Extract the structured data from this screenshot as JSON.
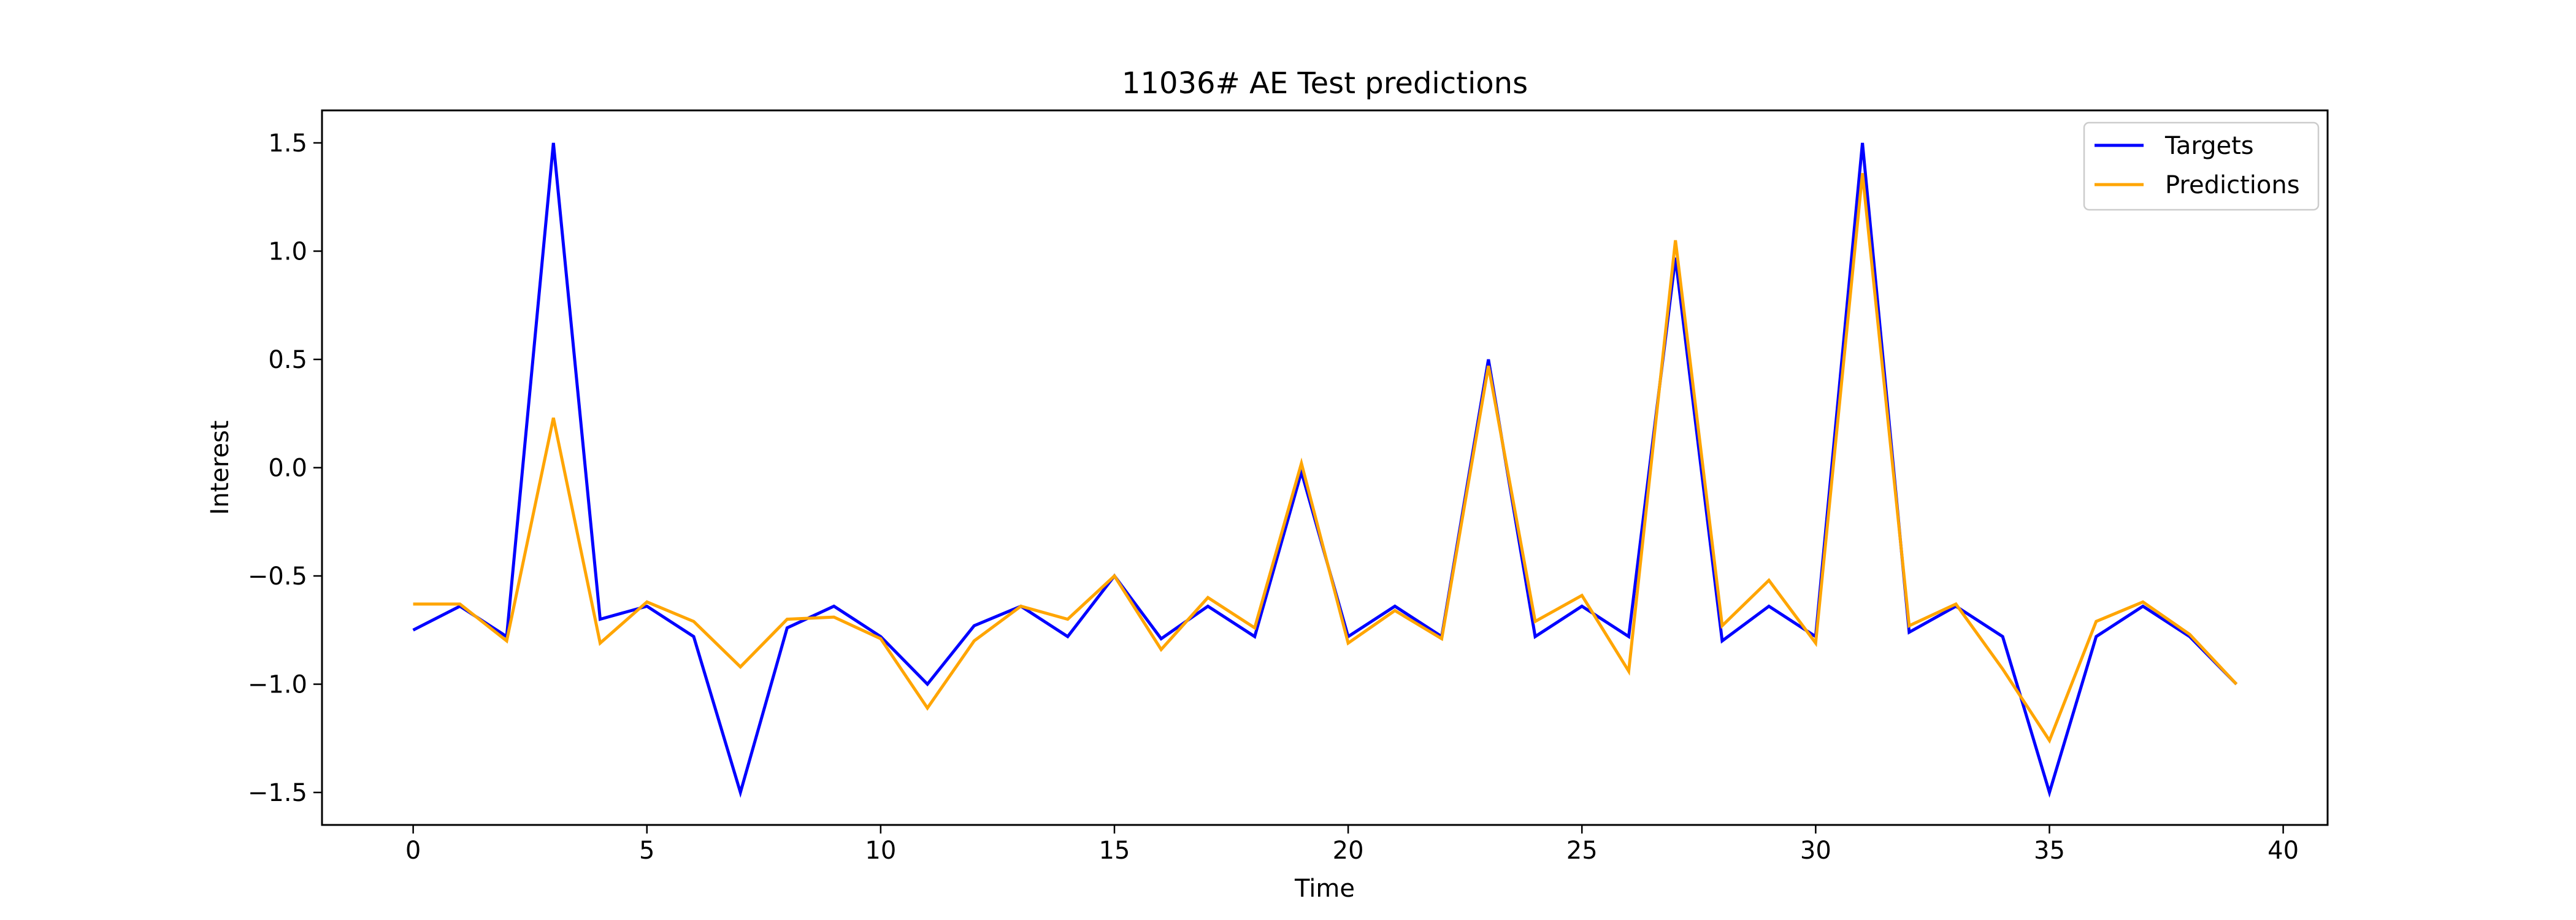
{
  "chart_data": {
    "type": "line",
    "title": "11036# AE Test predictions",
    "xlabel": "Time",
    "ylabel": "Interest",
    "xlim": [
      -1.95,
      40.95
    ],
    "ylim": [
      -1.65,
      1.65
    ],
    "xticks": [
      0,
      5,
      10,
      15,
      20,
      25,
      30,
      35,
      40
    ],
    "yticks": [
      -1.5,
      -1.0,
      -0.5,
      0.0,
      0.5,
      1.0,
      1.5
    ],
    "ytick_labels": [
      "−1.5",
      "−1.0",
      "−0.5",
      "0.0",
      "0.5",
      "1.0",
      "1.5"
    ],
    "grid": false,
    "legend_position": "top-right",
    "x": [
      0,
      1,
      2,
      3,
      4,
      5,
      6,
      7,
      8,
      9,
      10,
      11,
      12,
      13,
      14,
      15,
      16,
      17,
      18,
      19,
      20,
      21,
      22,
      23,
      24,
      25,
      26,
      27,
      28,
      29,
      30,
      31,
      32,
      33,
      34,
      35,
      36,
      37,
      38,
      39
    ],
    "series": [
      {
        "name": "Targets",
        "color": "#0000ff",
        "values": [
          -0.75,
          -0.64,
          -0.78,
          1.5,
          -0.7,
          -0.64,
          -0.78,
          -1.5,
          -0.74,
          -0.64,
          -0.78,
          -1.0,
          -0.73,
          -0.64,
          -0.78,
          -0.5,
          -0.79,
          -0.64,
          -0.78,
          -0.02,
          -0.78,
          -0.64,
          -0.78,
          0.5,
          -0.78,
          -0.64,
          -0.78,
          0.97,
          -0.8,
          -0.64,
          -0.78,
          1.5,
          -0.76,
          -0.64,
          -0.78,
          -1.5,
          -0.78,
          -0.64,
          -0.78,
          -1.0
        ]
      },
      {
        "name": "Predictions",
        "color": "#ffa500",
        "values": [
          -0.63,
          -0.63,
          -0.8,
          0.23,
          -0.81,
          -0.62,
          -0.71,
          -0.92,
          -0.7,
          -0.69,
          -0.79,
          -1.11,
          -0.8,
          -0.64,
          -0.7,
          -0.5,
          -0.84,
          -0.6,
          -0.74,
          0.02,
          -0.81,
          -0.66,
          -0.79,
          0.47,
          -0.71,
          -0.59,
          -0.94,
          1.05,
          -0.73,
          -0.52,
          -0.81,
          1.36,
          -0.73,
          -0.63,
          -0.93,
          -1.26,
          -0.71,
          -0.62,
          -0.77,
          -1.0
        ]
      }
    ]
  }
}
